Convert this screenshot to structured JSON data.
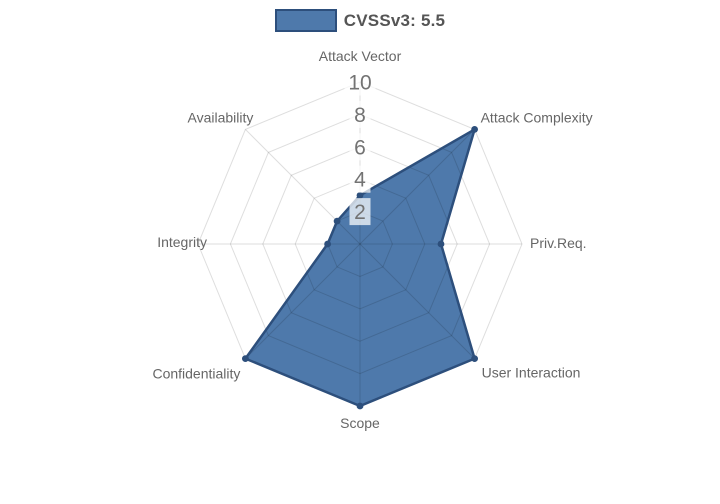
{
  "chart_data": {
    "type": "radar",
    "title": "",
    "categories": [
      "Attack Vector",
      "Attack Complexity",
      "Priv.Req.",
      "User Interaction",
      "Scope",
      "Confidentiality",
      "Integrity",
      "Availability"
    ],
    "series": [
      {
        "name": "CVSSv3: 5.5",
        "values": [
          3,
          10,
          5,
          10,
          10,
          10,
          2,
          2
        ]
      }
    ],
    "ticks": [
      2,
      4,
      6,
      8,
      10
    ],
    "rmin": 0,
    "rmax": 10,
    "grid": true,
    "grid_shape": "polygon",
    "legend_position": "top",
    "colors": {
      "fill": "#4e79ab",
      "border": "#2d4f7c",
      "grid_line": "rgba(0,0,0,0.13)",
      "point_label": "#666666",
      "tick_label": "#737373",
      "tick_backdrop": "rgba(255,255,255,0.72)",
      "legend_text": "#555555",
      "background": "#ffffff"
    }
  }
}
